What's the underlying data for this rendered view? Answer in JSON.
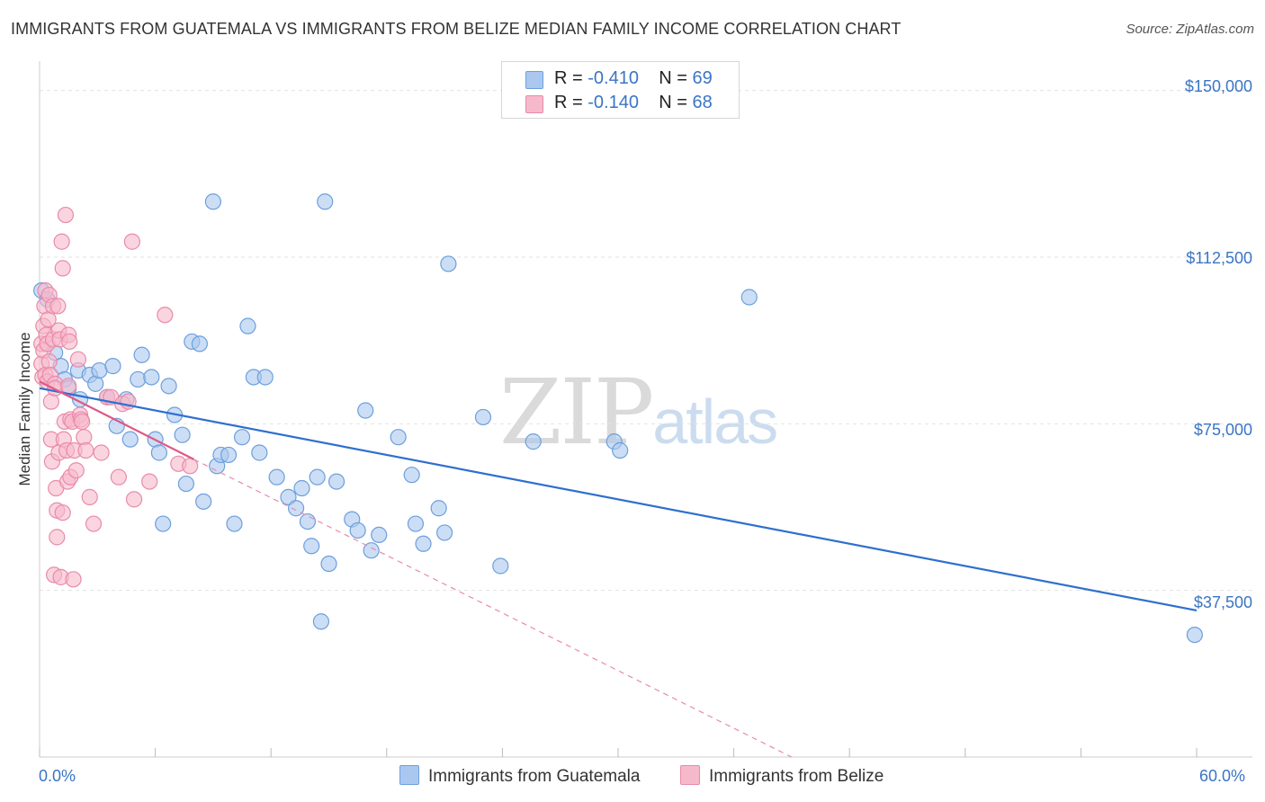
{
  "title": "IMMIGRANTS FROM GUATEMALA VS IMMIGRANTS FROM BELIZE MEDIAN FAMILY INCOME CORRELATION CHART",
  "source": "Source: ZipAtlas.com",
  "watermark": {
    "zip": "ZIP",
    "atlas": "atlas"
  },
  "legend": {
    "r_label": "R =",
    "n_label": "N =",
    "series": [
      {
        "r": "-0.410",
        "n": "69"
      },
      {
        "r": "-0.140",
        "n": "68"
      }
    ]
  },
  "colors": {
    "guatemala_fill": "#aac8ef",
    "guatemala_stroke": "#6d9fdc",
    "guatemala_line": "#2f6fce",
    "belize_fill": "#f6b9cc",
    "belize_stroke": "#e98aaa",
    "belize_line": "#e05888",
    "grid": "#e2e2e2",
    "tick_text": "#3a75c4"
  },
  "chart_data": {
    "type": "scatter",
    "title": "IMMIGRANTS FROM GUATEMALA VS IMMIGRANTS FROM BELIZE MEDIAN FAMILY INCOME CORRELATION CHART",
    "xlabel": "",
    "ylabel": "Median Family Income",
    "xlim": [
      0,
      60
    ],
    "ylim": [
      0,
      155000
    ],
    "x_tick_labels": [
      "0.0%",
      "60.0%"
    ],
    "y_ticks": [
      37500,
      75000,
      112500,
      150000
    ],
    "y_tick_labels": [
      "$37,500",
      "$75,000",
      "$112,500",
      "$150,000"
    ],
    "grid": "horizontal dashed",
    "legend_labels": [
      "Immigrants from Guatemala",
      "Immigrants from Belize"
    ],
    "series": [
      {
        "name": "Immigrants from Guatemala",
        "points": [
          [
            0.1,
            105000
          ],
          [
            0.4,
            103000
          ],
          [
            0.8,
            91000
          ],
          [
            1.1,
            88000
          ],
          [
            1.3,
            85000
          ],
          [
            1.5,
            83000
          ],
          [
            2.0,
            87000
          ],
          [
            2.1,
            80500
          ],
          [
            2.6,
            86000
          ],
          [
            2.9,
            84000
          ],
          [
            3.1,
            87000
          ],
          [
            3.5,
            81000
          ],
          [
            3.8,
            88000
          ],
          [
            4.0,
            74500
          ],
          [
            4.5,
            80500
          ],
          [
            4.7,
            71500
          ],
          [
            5.1,
            85000
          ],
          [
            5.3,
            90500
          ],
          [
            5.8,
            85500
          ],
          [
            6.0,
            71500
          ],
          [
            6.2,
            68500
          ],
          [
            6.4,
            52500
          ],
          [
            6.7,
            83500
          ],
          [
            7.0,
            77000
          ],
          [
            7.4,
            72500
          ],
          [
            7.6,
            61500
          ],
          [
            7.9,
            93500
          ],
          [
            8.3,
            93000
          ],
          [
            8.5,
            57500
          ],
          [
            9.0,
            125000
          ],
          [
            9.2,
            65500
          ],
          [
            9.4,
            68000
          ],
          [
            9.8,
            68000
          ],
          [
            10.1,
            52500
          ],
          [
            10.5,
            72000
          ],
          [
            10.8,
            97000
          ],
          [
            11.1,
            85500
          ],
          [
            11.4,
            68500
          ],
          [
            11.7,
            85500
          ],
          [
            12.3,
            63000
          ],
          [
            12.9,
            58500
          ],
          [
            13.3,
            56000
          ],
          [
            13.6,
            60500
          ],
          [
            13.9,
            53000
          ],
          [
            14.1,
            47500
          ],
          [
            14.4,
            63000
          ],
          [
            14.6,
            30500
          ],
          [
            14.8,
            125000
          ],
          [
            15.0,
            43500
          ],
          [
            15.4,
            62000
          ],
          [
            16.2,
            53500
          ],
          [
            16.5,
            51000
          ],
          [
            16.9,
            78000
          ],
          [
            17.2,
            46500
          ],
          [
            17.6,
            50000
          ],
          [
            18.6,
            72000
          ],
          [
            19.3,
            63500
          ],
          [
            19.5,
            52500
          ],
          [
            19.9,
            48000
          ],
          [
            20.7,
            56000
          ],
          [
            21.0,
            50500
          ],
          [
            21.2,
            111000
          ],
          [
            23.0,
            76500
          ],
          [
            23.9,
            43000
          ],
          [
            25.6,
            71000
          ],
          [
            29.8,
            71000
          ],
          [
            30.1,
            69000
          ],
          [
            36.8,
            103500
          ],
          [
            59.9,
            27500
          ]
        ]
      },
      {
        "name": "Immigrants from Belize",
        "points": [
          [
            0.1,
            93000
          ],
          [
            0.1,
            88500
          ],
          [
            0.15,
            85500
          ],
          [
            0.2,
            97000
          ],
          [
            0.2,
            91500
          ],
          [
            0.25,
            101500
          ],
          [
            0.3,
            86000
          ],
          [
            0.3,
            105000
          ],
          [
            0.35,
            95000
          ],
          [
            0.4,
            93000
          ],
          [
            0.4,
            84500
          ],
          [
            0.45,
            98500
          ],
          [
            0.5,
            104000
          ],
          [
            0.5,
            89000
          ],
          [
            0.55,
            86000
          ],
          [
            0.6,
            80000
          ],
          [
            0.6,
            71500
          ],
          [
            0.65,
            66500
          ],
          [
            0.7,
            101500
          ],
          [
            0.7,
            94000
          ],
          [
            0.75,
            41000
          ],
          [
            0.8,
            84000
          ],
          [
            0.8,
            83000
          ],
          [
            0.85,
            60500
          ],
          [
            0.9,
            55500
          ],
          [
            0.9,
            49500
          ],
          [
            0.95,
            101500
          ],
          [
            1.0,
            96000
          ],
          [
            1.0,
            68500
          ],
          [
            1.05,
            94000
          ],
          [
            1.1,
            40500
          ],
          [
            1.15,
            116000
          ],
          [
            1.2,
            55000
          ],
          [
            1.2,
            110000
          ],
          [
            1.25,
            71500
          ],
          [
            1.3,
            75500
          ],
          [
            1.35,
            122000
          ],
          [
            1.4,
            69000
          ],
          [
            1.45,
            62000
          ],
          [
            1.5,
            83500
          ],
          [
            1.5,
            95000
          ],
          [
            1.55,
            93500
          ],
          [
            1.6,
            76000
          ],
          [
            1.6,
            63000
          ],
          [
            1.7,
            75500
          ],
          [
            1.75,
            40000
          ],
          [
            1.8,
            69000
          ],
          [
            1.9,
            64500
          ],
          [
            2.0,
            89500
          ],
          [
            2.1,
            77000
          ],
          [
            2.15,
            76000
          ],
          [
            2.2,
            75500
          ],
          [
            2.3,
            72000
          ],
          [
            2.4,
            69000
          ],
          [
            2.6,
            58500
          ],
          [
            2.8,
            52500
          ],
          [
            3.2,
            68500
          ],
          [
            3.5,
            81000
          ],
          [
            3.7,
            81000
          ],
          [
            4.1,
            63000
          ],
          [
            4.3,
            79500
          ],
          [
            4.6,
            80000
          ],
          [
            4.8,
            116000
          ],
          [
            4.9,
            58000
          ],
          [
            5.7,
            62000
          ],
          [
            6.5,
            99500
          ],
          [
            7.2,
            66000
          ],
          [
            7.8,
            65500
          ]
        ]
      }
    ],
    "trend_lines": [
      {
        "series": "Immigrants from Guatemala",
        "from": [
          0,
          83000
        ],
        "to": [
          60,
          33000
        ]
      },
      {
        "series": "Immigrants from Belize",
        "from": [
          0,
          84500
        ],
        "to": [
          8,
          67000
        ]
      },
      {
        "series": "Immigrants from Belize",
        "style": "dashed extension",
        "from": [
          8,
          67000
        ],
        "to": [
          39,
          0
        ]
      }
    ]
  }
}
